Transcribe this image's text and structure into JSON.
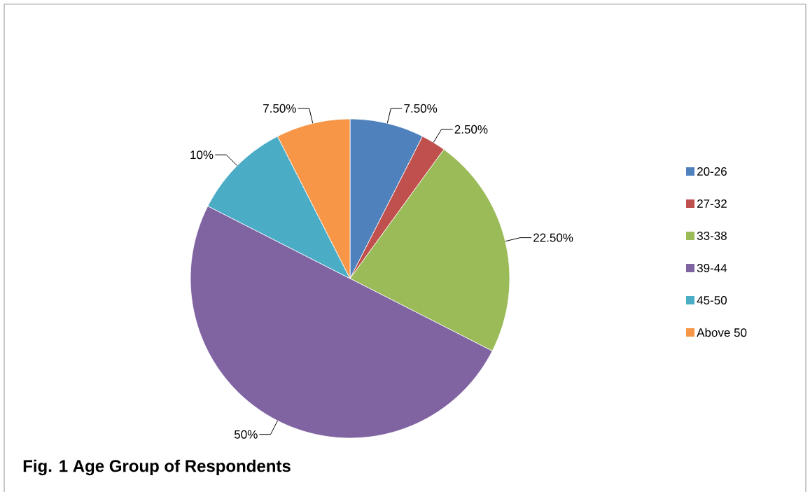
{
  "chart_data": {
    "type": "pie",
    "title": "Fig. 1  Age Group of Respondents",
    "categories": [
      "20-26",
      "27-32",
      "33-38",
      "39-44",
      "45-50",
      "Above 50"
    ],
    "values": [
      7.5,
      2.5,
      22.5,
      50,
      10,
      7.5
    ],
    "value_labels": [
      "7.50%",
      "2.50%",
      "22.50%",
      "50%",
      "10%",
      "7.50%"
    ],
    "colors": [
      "#4f81bd",
      "#c0504d",
      "#9bbb59",
      "#8064a2",
      "#4bacc6",
      "#f79646"
    ],
    "legend": "right"
  }
}
